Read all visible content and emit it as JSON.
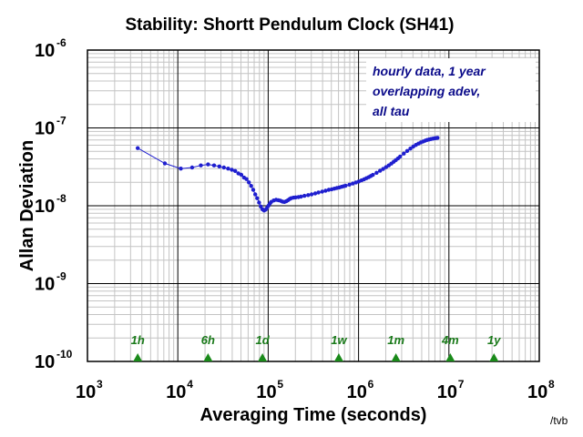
{
  "chart_data": {
    "type": "scatter",
    "title": "Stability: Shortt Pendulum Clock (SH41)",
    "xlabel": "Averaging Time (seconds)",
    "ylabel": "Allan Deviation",
    "x_scale": "log",
    "y_scale": "log",
    "xlim": [
      1000,
      100000000
    ],
    "ylim": [
      1e-10,
      1e-06
    ],
    "x_ticks": [
      {
        "base": "10",
        "exp": "3",
        "value": 1000
      },
      {
        "base": "10",
        "exp": "4",
        "value": 10000
      },
      {
        "base": "10",
        "exp": "5",
        "value": 100000
      },
      {
        "base": "10",
        "exp": "6",
        "value": 1000000
      },
      {
        "base": "10",
        "exp": "7",
        "value": 10000000
      },
      {
        "base": "10",
        "exp": "8",
        "value": 100000000
      }
    ],
    "y_ticks": [
      {
        "base": "10",
        "exp": "-10",
        "value": 1e-10
      },
      {
        "base": "10",
        "exp": "-9",
        "value": 1e-09
      },
      {
        "base": "10",
        "exp": "-8",
        "value": 1e-08
      },
      {
        "base": "10",
        "exp": "-7",
        "value": 1e-07
      },
      {
        "base": "10",
        "exp": "-6",
        "value": 1e-06
      }
    ],
    "grid": true,
    "annotation": [
      "hourly data, 1 year",
      "overlapping adev,",
      "all tau"
    ],
    "markers": [
      {
        "label": "1h",
        "x": 3600
      },
      {
        "label": "6h",
        "x": 21600
      },
      {
        "label": "1d",
        "x": 86400
      },
      {
        "label": "1w",
        "x": 604800
      },
      {
        "label": "1m",
        "x": 2592000
      },
      {
        "label": "4m",
        "x": 10368000
      },
      {
        "label": "1y",
        "x": 31536000
      }
    ],
    "series": [
      {
        "color": "#1f1fcf",
        "x": [
          3600,
          7200,
          10800,
          14400,
          18000,
          21600,
          25200,
          28800,
          32400,
          36000,
          39600,
          43200,
          46800,
          50400,
          54000,
          57600,
          61200,
          64800,
          68400,
          72000,
          75600,
          79200,
          82800,
          86400,
          90000,
          93600,
          97200,
          100800,
          104400,
          108000,
          115200,
          122400,
          129600,
          136800,
          144000,
          151200,
          158400,
          165600,
          172800,
          180000,
          190800,
          201600,
          216000,
          230400,
          252000,
          277200,
          302400,
          331200,
          360000,
          396000,
          432000,
          468000,
          504000,
          540000,
          576000,
          612000,
          648000,
          684000,
          720000,
          792000,
          864000,
          936000,
          1008000,
          1080000,
          1152000,
          1224000,
          1296000,
          1368000,
          1440000,
          1584000,
          1728000,
          1872000,
          2016000,
          2160000,
          2304000,
          2448000,
          2592000,
          2736000,
          2880000,
          3168000,
          3456000,
          3744000,
          4032000,
          4320000,
          4608000,
          4896000,
          5184000,
          5472000,
          5760000,
          6048000,
          6336000,
          6624000,
          6912000,
          7200000,
          7488000
        ],
        "y": [
          5.5e-08,
          3.5e-08,
          3e-08,
          3.1e-08,
          3.3e-08,
          3.4e-08,
          3.3e-08,
          3.2e-08,
          3.1e-08,
          3e-08,
          2.9e-08,
          2.8e-08,
          2.6e-08,
          2.5e-08,
          2.3e-08,
          2.2e-08,
          2e-08,
          1.8e-08,
          1.6e-08,
          1.4e-08,
          1.25e-08,
          1.1e-08,
          9.8e-09,
          9e-09,
          8.7e-09,
          8.9e-09,
          9.4e-09,
          1e-08,
          1.07e-08,
          1.12e-08,
          1.17e-08,
          1.19e-08,
          1.18e-08,
          1.16e-08,
          1.13e-08,
          1.12e-08,
          1.14e-08,
          1.18e-08,
          1.22e-08,
          1.25e-08,
          1.27e-08,
          1.28e-08,
          1.29e-08,
          1.31e-08,
          1.34e-08,
          1.37e-08,
          1.4e-08,
          1.44e-08,
          1.48e-08,
          1.52e-08,
          1.56e-08,
          1.6e-08,
          1.63e-08,
          1.66e-08,
          1.69e-08,
          1.72e-08,
          1.75e-08,
          1.78e-08,
          1.81e-08,
          1.87e-08,
          1.93e-08,
          1.99e-08,
          2.05e-08,
          2.12e-08,
          2.19e-08,
          2.26e-08,
          2.33e-08,
          2.41e-08,
          2.49e-08,
          2.65e-08,
          2.81e-08,
          2.97e-08,
          3.13e-08,
          3.3e-08,
          3.48e-08,
          3.67e-08,
          3.87e-08,
          4.07e-08,
          4.28e-08,
          4.68e-08,
          5.06e-08,
          5.42e-08,
          5.76e-08,
          6.05e-08,
          6.3e-08,
          6.52e-08,
          6.7e-08,
          6.86e-08,
          7e-08,
          7.1e-08,
          7.2e-08,
          7.28e-08,
          7.35e-08,
          7.4e-08,
          7.45e-08
        ]
      }
    ]
  },
  "credit": "/tvb"
}
